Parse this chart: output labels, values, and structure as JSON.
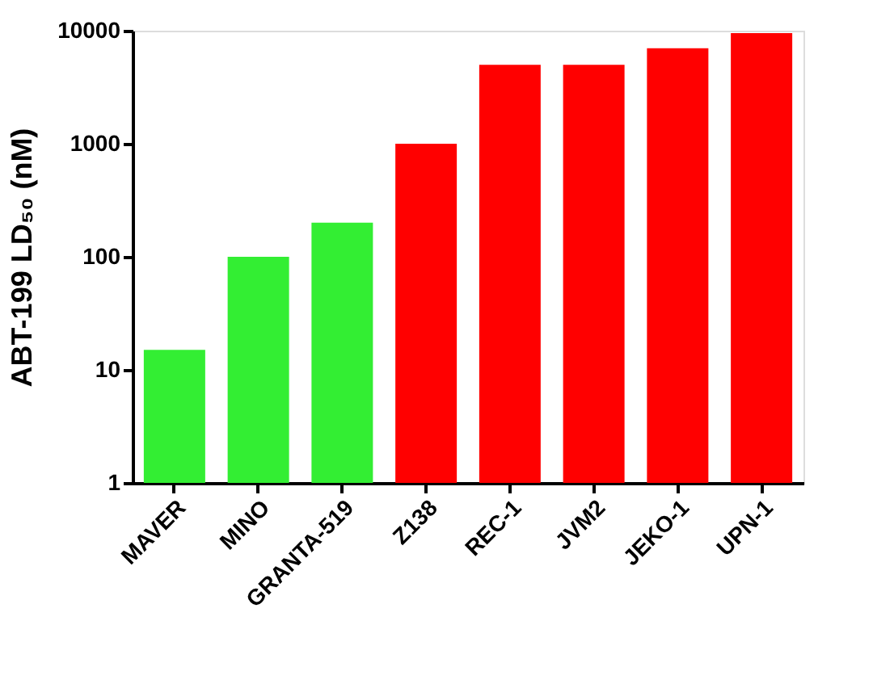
{
  "chart_data": {
    "type": "bar",
    "ylabel": "ABT-199 LD₅₀ (nM)",
    "categories": [
      "MAVER",
      "MINO",
      "GRANTA-519",
      "Z138",
      "REC-1",
      "JVM2",
      "JEKO-1",
      "UPN-1"
    ],
    "values": [
      15,
      100,
      200,
      1000,
      5000,
      5000,
      7000,
      9500
    ],
    "colors": [
      "#33ee33",
      "#33ee33",
      "#33ee33",
      "#ff0000",
      "#ff0000",
      "#ff0000",
      "#ff0000",
      "#ff0000"
    ],
    "log": true,
    "ylim": [
      1,
      10000
    ],
    "yticks": [
      1,
      10,
      100,
      1000,
      10000
    ],
    "grid": false
  }
}
